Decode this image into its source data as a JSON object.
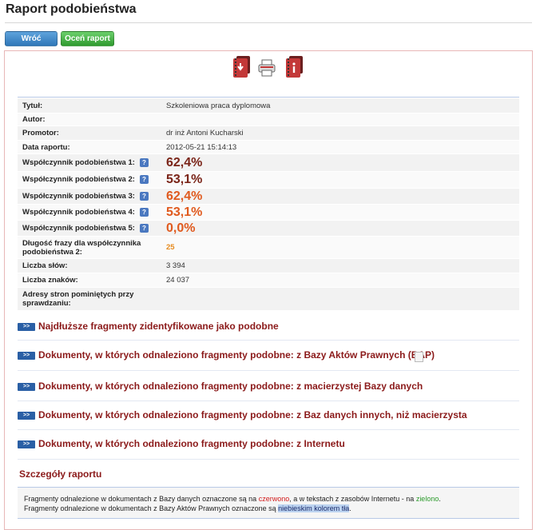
{
  "header": {
    "title": "Raport podobieństwa"
  },
  "toolbar": {
    "back_label": "Wróć",
    "rate_label": "Oceń raport"
  },
  "icons": {
    "download": "download-report-icon",
    "print": "printer-icon",
    "info": "info-icon"
  },
  "meta": {
    "rows": [
      {
        "label": "Tytuł:",
        "value": "Szkoleniowa praca dyplomowa"
      },
      {
        "label": "Autor:",
        "value": ""
      },
      {
        "label": "Promotor:",
        "value": "dr inż Antoni Kucharski"
      },
      {
        "label": "Data raportu:",
        "value": "2012-05-21 15:14:13"
      }
    ],
    "coefficients": [
      {
        "label": "Współczynnik podobieństwa 1:",
        "value": "62,4%",
        "tone": "dark"
      },
      {
        "label": "Współczynnik podobieństwa 2:",
        "value": "53,1%",
        "tone": "dark"
      },
      {
        "label": "Współczynnik podobieństwa 3:",
        "value": "62,4%",
        "tone": "orange"
      },
      {
        "label": "Współczynnik podobieństwa 4:",
        "value": "53,1%",
        "tone": "orange"
      },
      {
        "label": "Współczynnik podobieństwa 5:",
        "value": "0,0%",
        "tone": "orange"
      }
    ],
    "phrase_length_label": "Długość frazy dla współczynnika podobieństwa 2:",
    "phrase_length_value": "25",
    "words_label": "Liczba słów:",
    "words_value": "3 394",
    "chars_label": "Liczba znaków:",
    "chars_value": "24 037",
    "skipped_label": "Adresy stron pominiętych przy sprawdzaniu:",
    "skipped_value": ""
  },
  "sections": [
    {
      "arrow": ">>",
      "label": "Najdłuższe fragmenty zidentyfikowane jako podobne"
    },
    {
      "arrow": ">>",
      "label": "Dokumenty, w których odnaleziono fragmenty podobne: z Bazy Aktów Prawnych (BAP)"
    },
    {
      "arrow": ">>",
      "label": "Dokumenty, w których odnaleziono fragmenty podobne: z macierzystej Bazy danych"
    },
    {
      "arrow": ">>",
      "label": "Dokumenty, w których odnaleziono fragmenty podobne: z Baz danych innych, niż macierzysta"
    },
    {
      "arrow": ">>",
      "label": "Dokumenty, w których odnaleziono fragmenty podobne: z Internetu"
    }
  ],
  "details": {
    "title": "Szczegóły raportu",
    "line1_a": "Fragmenty odnalezione w dokumentach z Bazy danych oznaczone są na ",
    "line1_red": "czerwono",
    "line1_b": ", a w tekstach z zasobów Internetu - na ",
    "line1_green": "zielono",
    "line1_c": ".",
    "line2_a": "Fragmenty odnalezione w dokumentach z Bazy Aktów Prawnych oznaczone są ",
    "line2_blue": "niebieskim kolorem tła",
    "line2_c": "."
  },
  "colors": {
    "accent_red": "#8b1a1a",
    "pct_dark": "#7a2418",
    "pct_orange": "#e05a1e",
    "button_blue": "#2f77b8",
    "button_green": "#2f9a2f"
  }
}
